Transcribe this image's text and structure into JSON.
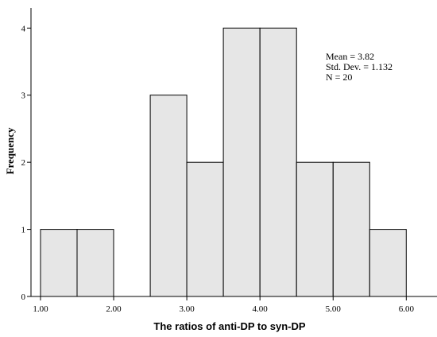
{
  "chart_data": {
    "type": "bar",
    "title": "",
    "xlabel": "The ratios of anti-DP to syn-DP",
    "ylabel": "Frequency",
    "bin_edges": [
      1.0,
      1.5,
      2.0,
      2.5,
      3.0,
      3.5,
      4.0,
      4.5,
      5.0,
      5.5,
      6.0
    ],
    "values": [
      1,
      1,
      0,
      3,
      2,
      4,
      4,
      2,
      2,
      1
    ],
    "xlim": [
      0.87,
      6.42
    ],
    "ylim": [
      0,
      4.3
    ],
    "xticks": [
      1.0,
      2.0,
      3.0,
      4.0,
      5.0,
      6.0
    ],
    "xtick_labels": [
      "1.00",
      "2.00",
      "3.00",
      "4.00",
      "5.00",
      "6.00"
    ],
    "yticks": [
      0,
      1,
      2,
      3,
      4
    ],
    "ytick_labels": [
      "0",
      "1",
      "2",
      "3",
      "4"
    ],
    "stats": {
      "mean_text": "Mean = 3.82",
      "std_text": "Std. Dev. = 1.132",
      "n_text": "N = 20"
    },
    "grid": false,
    "legend": "none",
    "bar_color": "#e6e6e6",
    "edge_color": "#000000"
  }
}
